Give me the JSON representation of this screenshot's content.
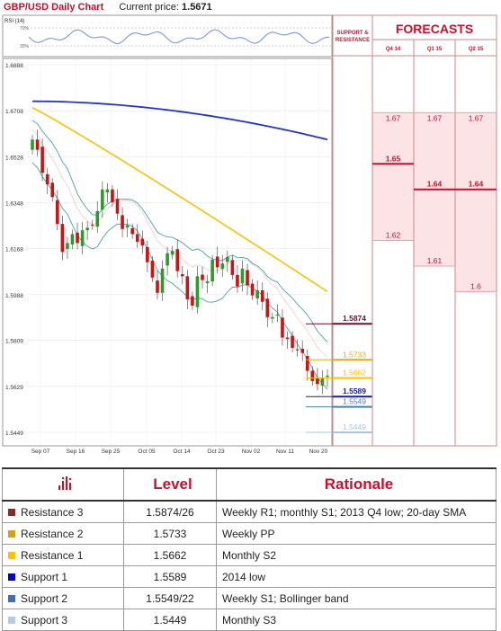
{
  "header": {
    "title": "GBP/USD Daily Chart",
    "price_label": "Current price:",
    "price_value": "1.5671"
  },
  "rsi": {
    "label": "RSI (14)",
    "levels": [
      "70%",
      "30%"
    ]
  },
  "chart_data": {
    "type": "candlestick",
    "y_ticks": [
      1.6888,
      1.6708,
      1.6528,
      1.6348,
      1.6168,
      1.5988,
      1.5809,
      1.5629,
      1.5449
    ],
    "ylim": [
      1.539,
      1.6905
    ],
    "x_ticks": [
      "Sep 07",
      "Sep 16",
      "Sep 25",
      "Oct 05",
      "Oct 14",
      "Oct 23",
      "Nov 02",
      "Nov 11",
      "Nov 20"
    ],
    "series_close": [
      1.6595,
      1.6555,
      1.6465,
      1.642,
      1.637,
      1.6265,
      1.6155,
      1.619,
      1.6225,
      1.619,
      1.624,
      1.625,
      1.626,
      1.6315,
      1.64,
      1.64,
      1.635,
      1.6305,
      1.6245,
      1.626,
      1.6225,
      1.6195,
      1.618,
      1.6115,
      1.6055,
      1.5995,
      1.609,
      1.615,
      1.616,
      1.608,
      1.606,
      1.597,
      1.5945,
      1.606,
      1.6045,
      1.604,
      1.6125,
      1.6095,
      1.611,
      1.6135,
      1.6065,
      1.602,
      1.609,
      1.6025,
      1.5985,
      1.6005,
      1.596,
      1.59,
      1.59,
      1.591,
      1.582,
      1.5815,
      1.578,
      1.577,
      1.576,
      1.569,
      1.565,
      1.5638,
      1.566,
      1.5671
    ],
    "levels": [
      {
        "label": "1.5874",
        "value": 1.5874,
        "color": "#6b0f2e"
      },
      {
        "label": "1.5733",
        "value": 1.5733,
        "color": "#e6a817"
      },
      {
        "label": "1.5662",
        "value": 1.5662,
        "color": "#ffc000"
      },
      {
        "label": "1.5589",
        "value": 1.5589,
        "color": "#1a1aa8"
      },
      {
        "label": "1.5549",
        "value": 1.5549,
        "color": "#4a7fc1"
      },
      {
        "label": "1.5449",
        "value": 1.5449,
        "color": "#a9c4e6"
      }
    ]
  },
  "support_resistance_header": "SUPPORT & RESISTANCE",
  "forecasts": {
    "title": "FORECASTS",
    "columns": [
      {
        "label": "Q4 14",
        "high": "1.67",
        "mid": "1.65",
        "low": "1.62",
        "vhigh": 1.67,
        "vmid": 1.65,
        "vlow": 1.62
      },
      {
        "label": "Q1 15",
        "high": "1.67",
        "mid": "1.64",
        "low": "1.61",
        "vhigh": 1.67,
        "vmid": 1.64,
        "vlow": 1.61
      },
      {
        "label": "Q2 15",
        "high": "1.67",
        "mid": "1.64",
        "low": "1.6",
        "vhigh": 1.67,
        "vmid": 1.64,
        "vlow": 1.6
      }
    ]
  },
  "table": {
    "headers": [
      "Level",
      "Rationale"
    ],
    "rows": [
      {
        "name": "Resistance 3",
        "level": "1.5874/26",
        "rationale": "Weekly R1; monthly S1; 2013 Q4 low; 20-day SMA",
        "color": "#8b2a2a"
      },
      {
        "name": "Resistance 2",
        "level": "1.5733",
        "rationale": "Weekly PP",
        "color": "#d4a017"
      },
      {
        "name": "Resistance 1",
        "level": "1.5662",
        "rationale": "Monthly S2",
        "color": "#ffc000"
      },
      {
        "name": "Support 1",
        "level": "1.5589",
        "rationale": "2014 low",
        "color": "#0000cc"
      },
      {
        "name": "Support 2",
        "level": "1.5549/22",
        "rationale": "Weekly S1; Bollinger band",
        "color": "#3f6fb5"
      },
      {
        "name": "Support 3",
        "level": "1.5449",
        "rationale": "Monthly S3",
        "color": "#b7cbe8"
      }
    ]
  }
}
